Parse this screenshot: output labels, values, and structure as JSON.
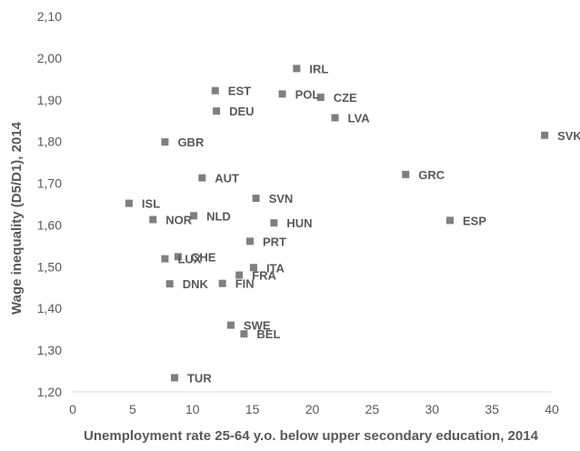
{
  "chart_data": {
    "type": "scatter",
    "title": "",
    "xlabel": "Unemployment rate 25-64 y.o. below upper secondary education, 2014",
    "ylabel": "Wage inequality (D5/D1), 2014",
    "xlim": [
      0,
      40
    ],
    "ylim": [
      1.2,
      2.1
    ],
    "grid": false,
    "legend": "none",
    "marker_color": "#7f7f7f",
    "x_ticks": [
      "0",
      "5",
      "10",
      "15",
      "20",
      "25",
      "30",
      "35",
      "40"
    ],
    "y_ticks": [
      "1,20",
      "1,30",
      "1,40",
      "1,50",
      "1,60",
      "1,70",
      "1,80",
      "1,90",
      "2,00",
      "2,10"
    ],
    "points": [
      {
        "label": "IRL",
        "x": 18.7,
        "y": 1.975
      },
      {
        "label": "EST",
        "x": 11.9,
        "y": 1.922
      },
      {
        "label": "POL",
        "x": 17.5,
        "y": 1.914
      },
      {
        "label": "CZE",
        "x": 20.7,
        "y": 1.906
      },
      {
        "label": "DEU",
        "x": 12.0,
        "y": 1.873
      },
      {
        "label": "LVA",
        "x": 21.9,
        "y": 1.857
      },
      {
        "label": "SVK",
        "x": 39.4,
        "y": 1.815
      },
      {
        "label": "GBR",
        "x": 7.7,
        "y": 1.799
      },
      {
        "label": "GRC",
        "x": 27.8,
        "y": 1.721
      },
      {
        "label": "AUT",
        "x": 10.8,
        "y": 1.713
      },
      {
        "label": "SVN",
        "x": 15.3,
        "y": 1.664
      },
      {
        "label": "ISL",
        "x": 4.7,
        "y": 1.652
      },
      {
        "label": "NLD",
        "x": 10.1,
        "y": 1.622
      },
      {
        "label": "NOR",
        "x": 6.7,
        "y": 1.613
      },
      {
        "label": "ESP",
        "x": 31.5,
        "y": 1.611
      },
      {
        "label": "HUN",
        "x": 16.8,
        "y": 1.605
      },
      {
        "label": "PRT",
        "x": 14.8,
        "y": 1.561
      },
      {
        "label": "CHE",
        "x": 8.8,
        "y": 1.524
      },
      {
        "label": "LUX",
        "x": 7.7,
        "y": 1.519
      },
      {
        "label": "ITA",
        "x": 15.1,
        "y": 1.498
      },
      {
        "label": "FRA",
        "x": 13.9,
        "y": 1.48
      },
      {
        "label": "DNK",
        "x": 8.1,
        "y": 1.459
      },
      {
        "label": "FIN",
        "x": 12.5,
        "y": 1.46
      },
      {
        "label": "SWE",
        "x": 13.2,
        "y": 1.36
      },
      {
        "label": "BEL",
        "x": 14.3,
        "y": 1.339
      },
      {
        "label": "TUR",
        "x": 8.5,
        "y": 1.234
      }
    ]
  }
}
